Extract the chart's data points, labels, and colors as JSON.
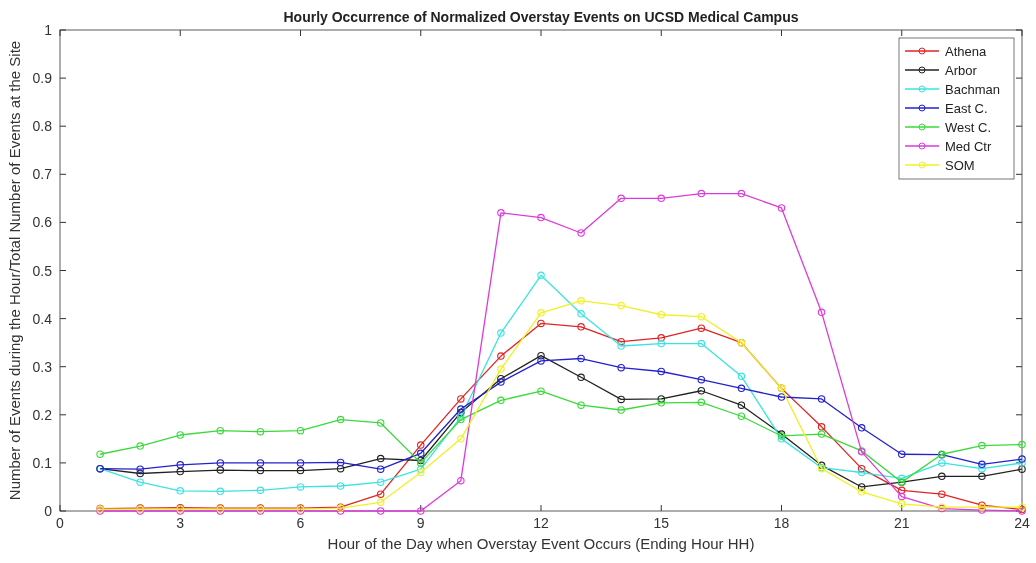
{
  "chart_data": {
    "type": "line",
    "title": "Hourly Occurrence of Normalized Overstay Events on UCSD Medical Campus",
    "xlabel": "Hour of the Day when Overstay Event Occurs (Ending Hour HH)",
    "ylabel": "Number of Events during the Hour/Total Number of Events at the Site",
    "x": [
      1,
      2,
      3,
      4,
      5,
      6,
      7,
      8,
      9,
      10,
      11,
      12,
      13,
      14,
      15,
      16,
      17,
      18,
      19,
      20,
      21,
      22,
      23,
      24
    ],
    "xlim": [
      0,
      24
    ],
    "xticks": [
      0,
      3,
      6,
      9,
      12,
      15,
      18,
      21,
      24
    ],
    "ylim": [
      0,
      1
    ],
    "yticks": [
      0,
      0.1,
      0.2,
      0.3,
      0.4,
      0.5,
      0.6,
      0.7,
      0.8,
      0.9,
      1
    ],
    "grid": false,
    "legend": "top right",
    "marker": "circle",
    "line_style": "solid",
    "series": [
      {
        "name": "Athena",
        "color": "#e02424",
        "values": [
          0.005,
          0.006,
          0.007,
          0.006,
          0.006,
          0.006,
          0.008,
          0.035,
          0.137,
          0.233,
          0.322,
          0.39,
          0.383,
          0.352,
          0.36,
          0.38,
          0.35,
          0.255,
          0.175,
          0.088,
          0.043,
          0.035,
          0.012,
          0.003
        ]
      },
      {
        "name": "Arbor",
        "color": "#222222",
        "values": [
          0.088,
          0.078,
          0.082,
          0.085,
          0.084,
          0.084,
          0.088,
          0.109,
          0.105,
          0.205,
          0.275,
          0.323,
          0.278,
          0.232,
          0.233,
          0.25,
          0.22,
          0.16,
          0.095,
          0.05,
          0.06,
          0.072,
          0.072,
          0.087
        ]
      },
      {
        "name": "Bachman",
        "color": "#3ae3e3",
        "values": [
          0.088,
          0.06,
          0.042,
          0.041,
          0.043,
          0.05,
          0.052,
          0.06,
          0.087,
          0.195,
          0.37,
          0.49,
          0.41,
          0.343,
          0.348,
          0.348,
          0.28,
          0.15,
          0.09,
          0.08,
          0.068,
          0.1,
          0.088,
          0.1
        ]
      },
      {
        "name": "East C.",
        "color": "#2222cc",
        "values": [
          0.088,
          0.087,
          0.096,
          0.1,
          0.1,
          0.1,
          0.101,
          0.087,
          0.12,
          0.212,
          0.268,
          0.312,
          0.317,
          0.298,
          0.29,
          0.273,
          0.255,
          0.237,
          0.233,
          0.173,
          0.118,
          0.117,
          0.097,
          0.108
        ]
      },
      {
        "name": "West C.",
        "color": "#3ada3a",
        "values": [
          0.118,
          0.135,
          0.158,
          0.167,
          0.165,
          0.167,
          0.19,
          0.183,
          0.1,
          0.19,
          0.23,
          0.249,
          0.22,
          0.21,
          0.225,
          0.226,
          0.197,
          0.156,
          0.16,
          0.125,
          0.06,
          0.118,
          0.136,
          0.138
        ]
      },
      {
        "name": "Med Ctr",
        "color": "#dd3add",
        "values": [
          0,
          0,
          0,
          0,
          0,
          0,
          0,
          0,
          0,
          0.063,
          0.62,
          0.61,
          0.578,
          0.65,
          0.65,
          0.66,
          0.66,
          0.63,
          0.413,
          0.123,
          0.03,
          0.005,
          0.002,
          0
        ]
      },
      {
        "name": "SOM",
        "color": "#f0f024",
        "values": [
          0.004,
          0.004,
          0.004,
          0.004,
          0.004,
          0.004,
          0.006,
          0.018,
          0.08,
          0.15,
          0.295,
          0.412,
          0.437,
          0.427,
          0.408,
          0.404,
          0.35,
          0.255,
          0.088,
          0.04,
          0.015,
          0.008,
          0.008,
          0.008
        ]
      }
    ]
  }
}
